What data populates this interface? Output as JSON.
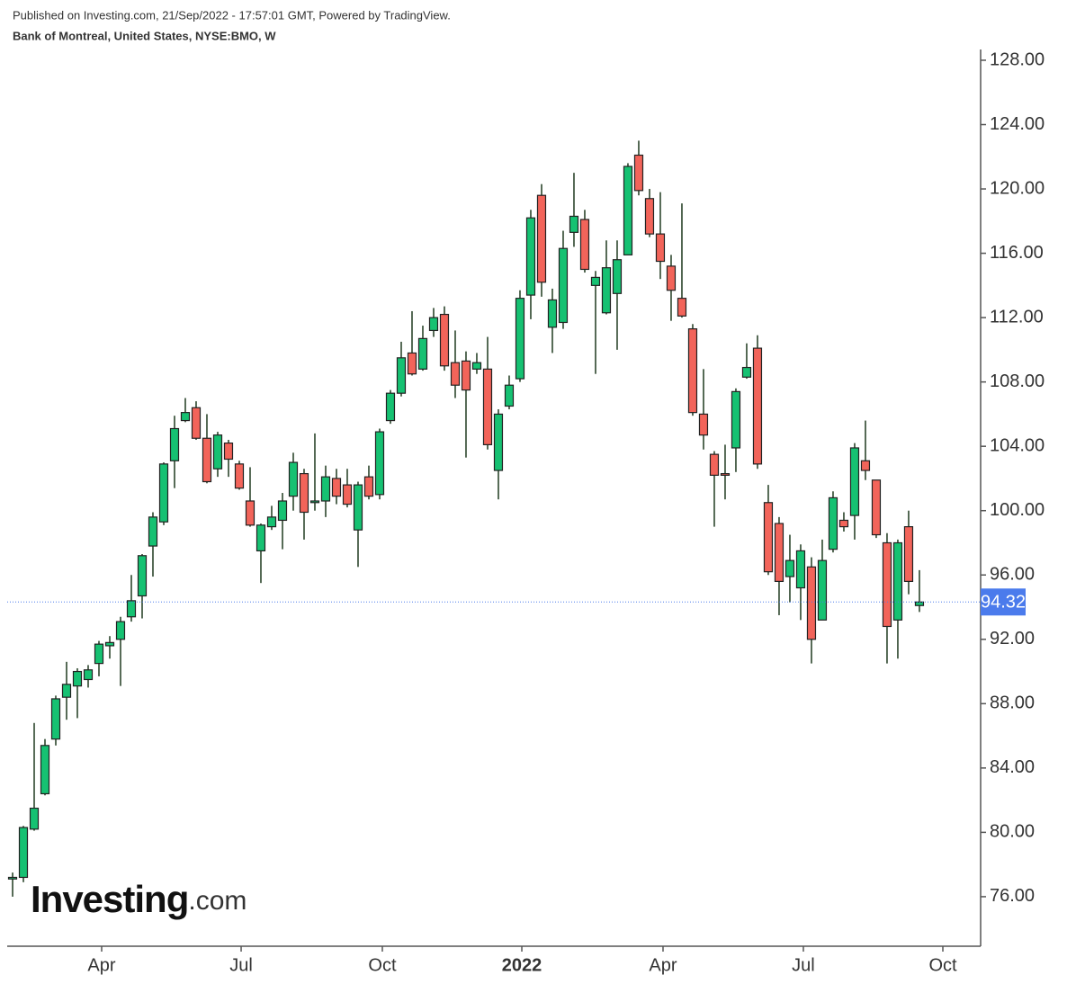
{
  "chart_data": {
    "type": "candlestick",
    "header": "Published on Investing.com, 21/Sep/2022 - 17:57:01 GMT, Powered by TradingView.",
    "title": "Bank of Montreal, United States, NYSE:BMO, W",
    "logo": {
      "brand": "Investing",
      "suffix": ".com"
    },
    "categories": [
      null,
      null,
      null,
      null,
      null,
      null,
      null,
      null,
      null,
      null,
      null,
      null,
      null,
      null,
      null,
      null,
      null,
      null,
      null,
      null,
      null,
      null,
      null,
      null,
      null,
      null,
      null,
      null,
      null,
      null,
      null,
      null,
      null,
      null,
      null,
      null,
      null,
      null,
      null,
      null,
      null,
      null,
      null,
      null,
      null,
      null,
      null,
      null,
      null,
      null,
      null,
      null,
      null,
      null,
      null,
      null,
      null,
      null,
      null,
      null,
      null,
      null,
      null,
      null,
      null,
      null,
      null,
      null,
      null,
      null,
      null,
      null,
      null,
      null,
      null,
      null,
      null,
      null,
      null,
      null,
      null,
      null,
      null,
      null,
      null
    ],
    "open": [
      77.1,
      77.2,
      80.2,
      82.4,
      85.8,
      88.4,
      89.1,
      89.5,
      90.5,
      91.6,
      92.0,
      93.4,
      94.7,
      97.8,
      99.3,
      103.1,
      105.6,
      106.4,
      104.5,
      102.6,
      104.2,
      102.9,
      100.6,
      97.5,
      99.0,
      99.4,
      100.9,
      102.3,
      100.5,
      100.6,
      102.0,
      101.6,
      98.8,
      102.1,
      101.0,
      105.6,
      107.3,
      109.8,
      108.8,
      111.2,
      112.2,
      109.2,
      109.3,
      108.8,
      108.8,
      102.5,
      106.5,
      108.2,
      113.4,
      119.6,
      111.4,
      111.7,
      117.3,
      118.1,
      114.0,
      112.3,
      113.5,
      115.9,
      122.1,
      119.4,
      117.2,
      115.2,
      113.2,
      111.3,
      106.0,
      103.5,
      102.3,
      103.9,
      108.3,
      110.1,
      100.5,
      99.2,
      95.9,
      95.2,
      96.5,
      93.2,
      97.6,
      99.4,
      99.7,
      103.1,
      101.9,
      98.0,
      93.2,
      99.0,
      94.1
    ],
    "high": [
      77.5,
      80.4,
      86.8,
      85.8,
      88.5,
      90.6,
      90.2,
      90.4,
      91.9,
      92.2,
      93.4,
      96.0,
      97.3,
      99.9,
      103.0,
      105.9,
      107.0,
      106.8,
      106.0,
      104.9,
      104.4,
      103.1,
      102.7,
      99.2,
      100.3,
      101.1,
      103.6,
      102.6,
      104.8,
      102.8,
      102.6,
      102.6,
      101.8,
      102.8,
      105.1,
      107.5,
      110.5,
      112.4,
      111.5,
      112.6,
      112.7,
      111.2,
      109.9,
      109.8,
      110.8,
      106.3,
      108.4,
      113.7,
      118.7,
      120.3,
      113.8,
      117.4,
      121.0,
      118.7,
      114.9,
      116.8,
      116.8,
      121.6,
      123.0,
      120.0,
      119.8,
      115.9,
      119.1,
      111.6,
      108.8,
      103.7,
      104.1,
      107.6,
      110.4,
      110.9,
      101.6,
      99.6,
      98.5,
      97.9,
      97.1,
      98.2,
      101.2,
      99.9,
      104.2,
      105.6,
      101.9,
      98.6,
      98.2,
      100.0,
      96.3
    ],
    "low": [
      76.0,
      76.9,
      80.1,
      82.3,
      85.4,
      87.0,
      87.1,
      89.0,
      89.7,
      90.8,
      89.1,
      93.1,
      93.3,
      95.9,
      99.1,
      101.4,
      105.5,
      104.4,
      101.7,
      102.1,
      102.1,
      101.3,
      99.0,
      95.5,
      98.8,
      97.6,
      100.0,
      98.2,
      100.0,
      99.6,
      100.4,
      100.2,
      96.5,
      100.7,
      100.7,
      105.4,
      107.1,
      108.4,
      108.7,
      110.8,
      108.7,
      107.0,
      103.3,
      108.5,
      103.8,
      100.7,
      106.3,
      108.0,
      111.9,
      113.3,
      109.8,
      111.3,
      116.4,
      114.8,
      108.5,
      112.2,
      110.0,
      115.9,
      119.6,
      117.0,
      114.4,
      111.8,
      112.0,
      105.9,
      103.8,
      99.0,
      100.7,
      102.4,
      108.2,
      102.6,
      96.0,
      93.5,
      94.3,
      93.2,
      90.5,
      93.2,
      97.4,
      98.7,
      98.2,
      101.9,
      98.3,
      90.5,
      90.8,
      94.8,
      93.7
    ],
    "close": [
      77.2,
      80.3,
      81.5,
      85.4,
      88.3,
      89.2,
      90.0,
      90.1,
      91.7,
      91.8,
      93.1,
      94.4,
      97.2,
      99.6,
      102.9,
      105.1,
      106.1,
      104.5,
      101.8,
      104.7,
      103.2,
      101.4,
      99.1,
      99.1,
      99.6,
      100.6,
      103.0,
      99.9,
      100.6,
      102.1,
      100.9,
      100.4,
      101.6,
      100.9,
      104.9,
      107.3,
      109.5,
      108.5,
      110.7,
      112.0,
      109.0,
      107.8,
      107.5,
      109.2,
      104.1,
      106.0,
      107.8,
      113.2,
      118.2,
      114.2,
      113.1,
      116.3,
      118.3,
      115.0,
      114.5,
      115.1,
      115.6,
      121.4,
      119.9,
      117.2,
      115.5,
      113.7,
      112.1,
      106.1,
      104.7,
      102.2,
      102.2,
      107.4,
      108.9,
      102.9,
      96.2,
      95.6,
      96.9,
      97.5,
      92.0,
      96.9,
      100.8,
      99.0,
      103.9,
      102.5,
      98.5,
      92.8,
      98.0,
      95.6,
      94.32
    ],
    "up_color": "#16c172",
    "down_color": "#f2645a",
    "last_price": 94.32,
    "last_price_color": "#4b7bec",
    "xlim": [
      -0.5,
      89.67
    ],
    "xticks": [
      {
        "value": 8.25,
        "label": "Apr"
      },
      {
        "value": 21.17,
        "label": "Jul"
      },
      {
        "value": 34.25,
        "label": "Oct"
      },
      {
        "value": 47.17,
        "label": "2022"
      },
      {
        "value": 60.25,
        "label": "Apr"
      },
      {
        "value": 73.25,
        "label": "Jul"
      },
      {
        "value": 86.17,
        "label": "Oct"
      }
    ],
    "ylim": [
      72.92,
      128.67
    ],
    "yticks": [
      {
        "value": 76,
        "label": "76.00"
      },
      {
        "value": 80,
        "label": "80.00"
      },
      {
        "value": 84,
        "label": "84.00"
      },
      {
        "value": 88,
        "label": "88.00"
      },
      {
        "value": 92,
        "label": "92.00"
      },
      {
        "value": 96,
        "label": "96.00"
      },
      {
        "value": 100,
        "label": "100.00"
      },
      {
        "value": 104,
        "label": "104.00"
      },
      {
        "value": 108,
        "label": "108.00"
      },
      {
        "value": 112,
        "label": "112.00"
      },
      {
        "value": 116,
        "label": "116.00"
      },
      {
        "value": 120,
        "label": "120.00"
      },
      {
        "value": 124,
        "label": "124.00"
      },
      {
        "value": 128,
        "label": "128.00"
      }
    ]
  }
}
